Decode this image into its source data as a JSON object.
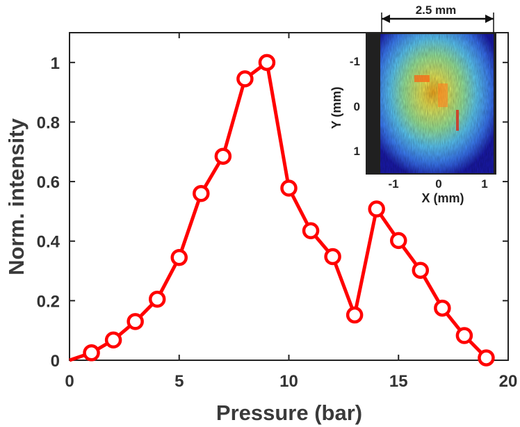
{
  "chart_data": {
    "type": "line",
    "title": "",
    "xlabel": "Pressure (bar)",
    "ylabel": "Norm. intensity",
    "xlim": [
      0,
      20
    ],
    "ylim": [
      0,
      1.1
    ],
    "xticks": [
      "0",
      "5",
      "10",
      "15",
      "20"
    ],
    "yticks": [
      "0",
      "0.2",
      "0.4",
      "0.6",
      "0.8",
      "1"
    ],
    "grid": false,
    "series": [
      {
        "color": "#ff0000",
        "marker": "open-circle",
        "x": [
          0,
          1,
          2,
          3,
          4,
          5,
          6,
          7,
          8,
          9,
          10,
          11,
          12,
          13,
          14,
          15,
          16,
          17,
          18,
          19
        ],
        "y": [
          0.0,
          0.025,
          0.068,
          0.13,
          0.205,
          0.345,
          0.56,
          0.685,
          0.945,
          1.0,
          0.578,
          0.435,
          0.348,
          0.152,
          0.508,
          0.402,
          0.302,
          0.175,
          0.083,
          0.008
        ]
      }
    ],
    "inset": {
      "type": "heatmap",
      "xlabel": "X (mm)",
      "ylabel": "Y (mm)",
      "xticks": [
        "-1",
        "0",
        "1"
      ],
      "yticks": [
        "-1",
        "0",
        "1"
      ],
      "scale_bar_label": "2.5 mm",
      "colormap": [
        "#1a1ab0",
        "#3d7fff",
        "#5fd0ff",
        "#9ff0a0",
        "#f3f05a",
        "#ffb020",
        "#ff4010"
      ]
    }
  }
}
